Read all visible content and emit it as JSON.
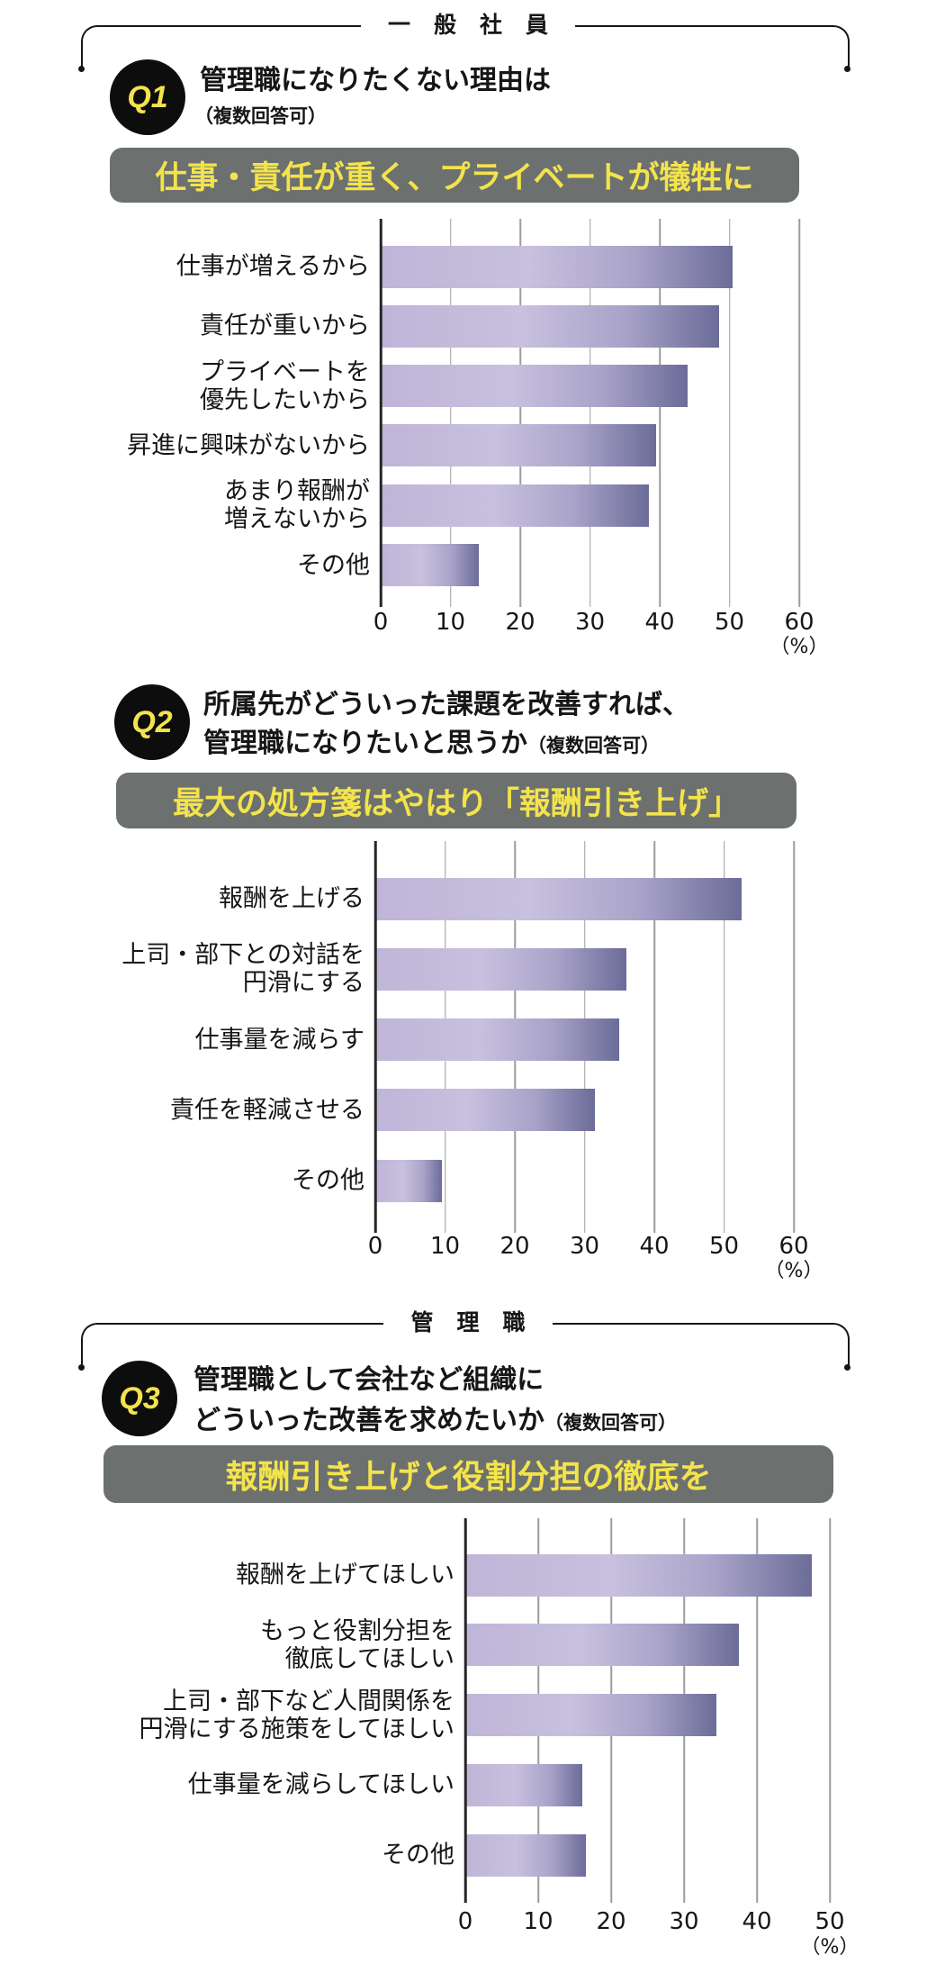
{
  "colors": {
    "banner": "#6c706f",
    "accent": "#f3e34c",
    "bar_light": "#bfb5d8",
    "bar_dark": "#6b6c98"
  },
  "groups": [
    {
      "header": "一般社員"
    },
    {
      "header": "管理職"
    }
  ],
  "questions": [
    {
      "badge": "Q1",
      "title_line1": "管理職になりたくない理由は",
      "note": "（複数回答可）",
      "banner": "仕事・責任が重く、プライベートが犠牲に"
    },
    {
      "badge": "Q2",
      "title_line1": "所属先がどういった課題を改善すれば、",
      "title_line2": "管理職になりたいと思うか",
      "note": "（複数回答可）",
      "banner": "最大の処方箋はやはり「報酬引き上げ」"
    },
    {
      "badge": "Q3",
      "title_line1": "管理職として会社など組織に",
      "title_line2": "どういった改善を求めたいか",
      "note": "（複数回答可）",
      "banner": "報酬引き上げと役割分担の徹底を"
    }
  ],
  "chart_data": [
    {
      "type": "bar",
      "orientation": "horizontal",
      "categories": [
        "仕事が増えるから",
        "責任が重いから",
        "プライベートを\n優先したいから",
        "昇進に興味がないから",
        "あまり報酬が\n増えないから",
        "その他"
      ],
      "values": [
        50.5,
        48.5,
        44.0,
        39.5,
        38.5,
        14.0
      ],
      "xlim": [
        0,
        60
      ],
      "xticks": [
        0,
        10,
        20,
        30,
        40,
        50,
        60
      ],
      "unit": "（%）",
      "grid": true
    },
    {
      "type": "bar",
      "orientation": "horizontal",
      "categories": [
        "報酬を上げる",
        "上司・部下との対話を\n円滑にする",
        "仕事量を減らす",
        "責任を軽減させる",
        "その他"
      ],
      "values": [
        52.5,
        36.0,
        35.0,
        31.5,
        9.5
      ],
      "xlim": [
        0,
        60
      ],
      "xticks": [
        0,
        10,
        20,
        30,
        40,
        50,
        60
      ],
      "unit": "（%）",
      "grid": true
    },
    {
      "type": "bar",
      "orientation": "horizontal",
      "categories": [
        "報酬を上げてほしい",
        "もっと役割分担を\n徹底してほしい",
        "上司・部下など人間関係を\n円滑にする施策をしてほしい",
        "仕事量を減らしてほしい",
        "その他"
      ],
      "values": [
        47.5,
        37.5,
        34.5,
        16.0,
        16.5
      ],
      "xlim": [
        0,
        50
      ],
      "xticks": [
        0,
        10,
        20,
        30,
        40,
        50
      ],
      "unit": "（%）",
      "grid": true
    }
  ]
}
